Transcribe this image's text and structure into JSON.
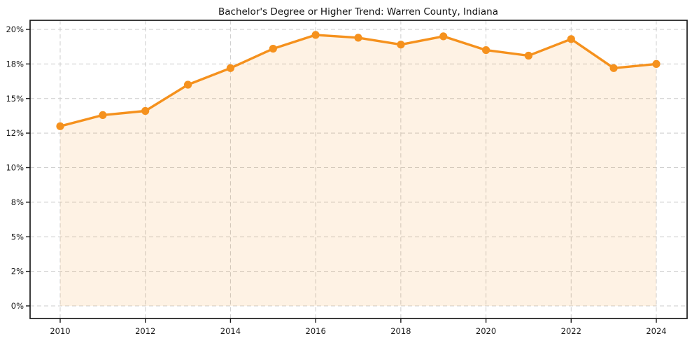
{
  "chart_data": {
    "type": "line",
    "title": "Bachelor's Degree or Higher Trend: Warren County, Indiana",
    "x": [
      2010,
      2011,
      2012,
      2013,
      2014,
      2015,
      2016,
      2017,
      2018,
      2019,
      2020,
      2021,
      2022,
      2023,
      2024
    ],
    "values": [
      13.0,
      13.8,
      14.1,
      16.0,
      17.2,
      18.6,
      19.6,
      19.4,
      18.9,
      19.5,
      18.5,
      18.1,
      19.3,
      17.2,
      17.5
    ],
    "xlabel": "",
    "ylabel": "",
    "ylim": [
      0,
      20
    ],
    "yticks": {
      "values": [
        0,
        2.5,
        5,
        7.5,
        10,
        12.5,
        15,
        17.5,
        20
      ],
      "labels": [
        "0%",
        "2%",
        "5%",
        "8%",
        "10%",
        "12%",
        "15%",
        "18%",
        "20%"
      ]
    },
    "xticks": {
      "values": [
        2010,
        2012,
        2014,
        2016,
        2018,
        2020,
        2022,
        2024
      ],
      "labels": [
        "2010",
        "2012",
        "2014",
        "2016",
        "2018",
        "2020",
        "2022",
        "2024"
      ]
    },
    "grid": true,
    "grid_style": "dashed",
    "legend": false,
    "marker": "circle",
    "colors": {
      "line": "#f5911d",
      "marker": "#f5911d",
      "fill": "rgba(245,145,29,0.12)",
      "grid": "#cccccc",
      "axis": "#1a1a1a",
      "tick_text": "#1a1a1a",
      "title_text": "#111111"
    }
  }
}
